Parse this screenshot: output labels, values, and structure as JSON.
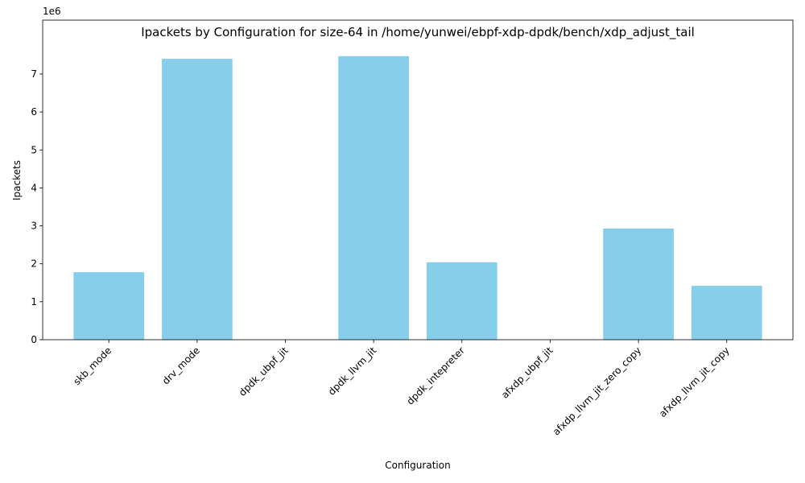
{
  "chart_data": {
    "type": "bar",
    "title": "Ipackets by Configuration for size-64 in /home/yunwei/ebpf-xdp-dpdk/bench/xdp_adjust_tail",
    "x_label": "Configuration",
    "y_label": "Ipackets",
    "y_offset_label": "1e6",
    "categories": [
      "skb_mode",
      "drv_mode",
      "dpdk_ubpf_jit",
      "dpdk_llvm_jit",
      "dpdk_intepreter",
      "afxdp_ubpf_jit",
      "afxdp_llvm_jit_zero_copy",
      "afxdp_llvm_jit_copy"
    ],
    "values": [
      1.78,
      7.4,
      0,
      7.47,
      2.04,
      0,
      2.93,
      1.42
    ],
    "color": "#87ceeb",
    "ylim": [
      0,
      8.42
    ],
    "yticks": [
      0,
      1,
      2,
      3,
      4,
      5,
      6,
      7
    ],
    "grid": false
  }
}
